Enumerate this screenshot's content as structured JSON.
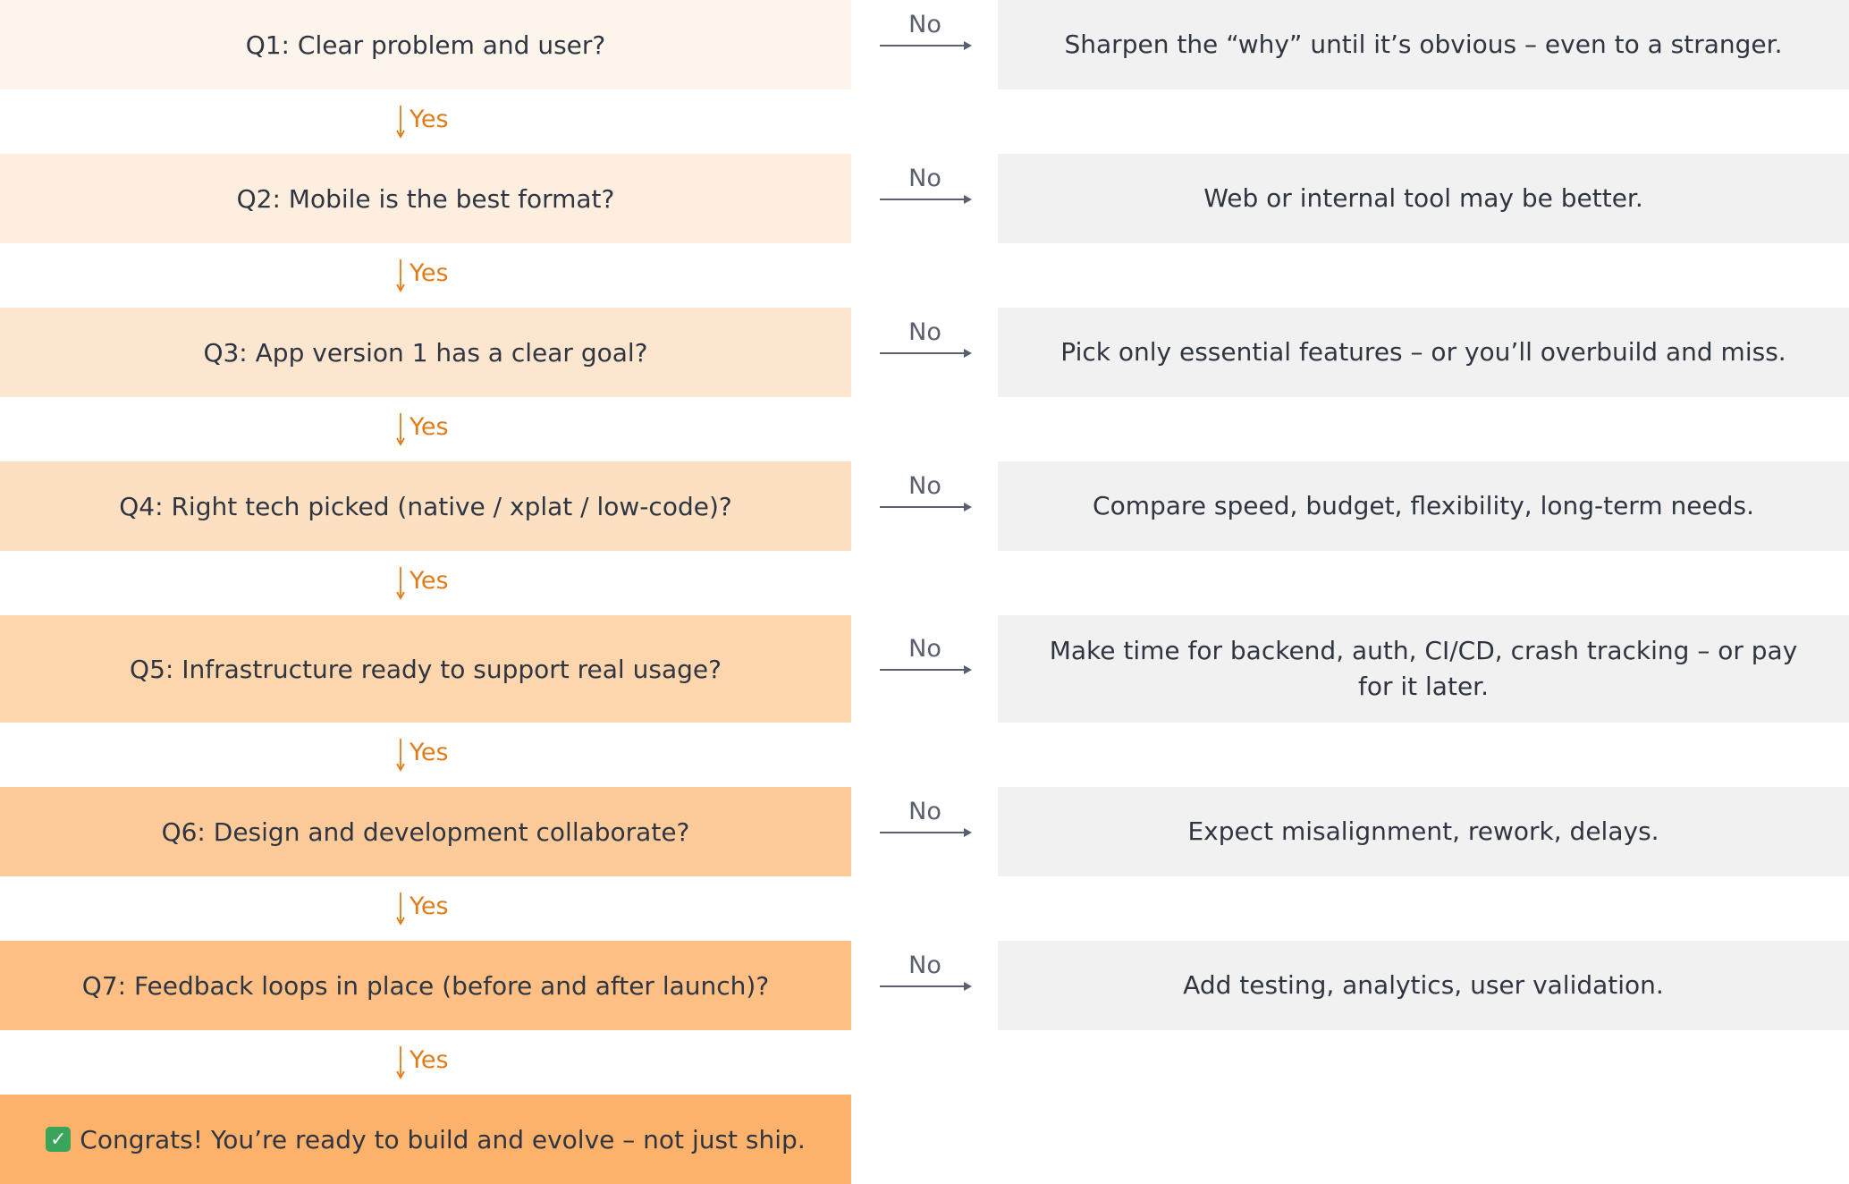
{
  "steps": [
    {
      "question": "Q1: Clear problem and user?",
      "no_label": "No",
      "no_text": "Sharpen the “why” until it’s obvious – even to a stranger.",
      "yes_label": "Yes",
      "color": "#fdf5ec"
    },
    {
      "question": "Q2: Mobile is the best format?",
      "no_label": "No",
      "no_text": "Web or internal tool may be better.",
      "yes_label": "Yes",
      "color": "#fdeedf"
    },
    {
      "question": "Q3: App version 1 has a clear goal?",
      "no_label": "No",
      "no_text": "Pick only essential features – or you’ll overbuild and miss.",
      "yes_label": "Yes",
      "color": "#fde6cf"
    },
    {
      "question": "Q4: Right tech picked (native / xplat / low-code)?",
      "no_label": "No",
      "no_text": "Compare speed, budget, flexibility, long-term needs.",
      "yes_label": "Yes",
      "color": "#fde0c2"
    },
    {
      "question": "Q5: Infrastructure ready to support real usage?",
      "no_label": "No",
      "no_text": "Make time for backend, auth, CI/CD, crash tracking – or pay for it later.",
      "yes_label": "Yes",
      "color": "#fdd6ad"
    },
    {
      "question": "Q6: Design and development collaborate?",
      "no_label": "No",
      "no_text": "Expect misalignment, rework, delays.",
      "yes_label": "Yes",
      "color": "#fdcb99"
    },
    {
      "question": "Q7: Feedback loops in place (before and after launch)?",
      "no_label": "No",
      "no_text": "Add testing, analytics, user validation.",
      "yes_label": "Yes",
      "color": "#fdbf84"
    }
  ],
  "final": {
    "icon": "check-mark-icon",
    "text": "Congrats! You’re ready to build and evolve – not just ship.",
    "color": "#fdb26b"
  },
  "colors": {
    "no_box": "#f1f1f1",
    "yes_accent": "#e07c1a",
    "connector": "#5b6070"
  }
}
